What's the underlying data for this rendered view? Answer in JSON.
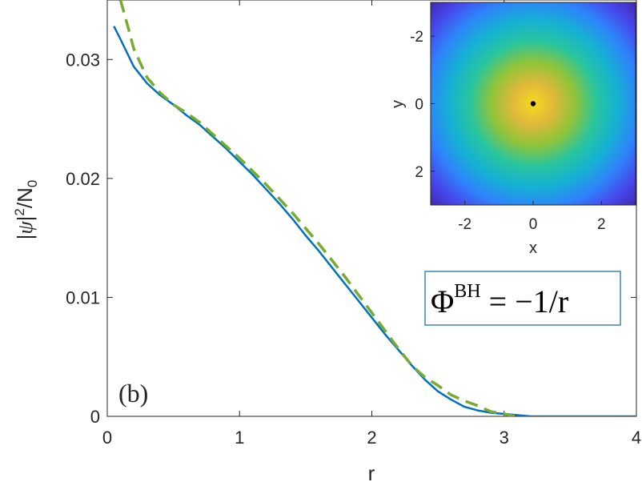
{
  "chart_data": [
    {
      "type": "line",
      "panel_label": "(b)",
      "xlabel": "r",
      "ylabel": "|ψ|²/N₀",
      "xlim": [
        0,
        4
      ],
      "ylim": [
        0,
        0.035
      ],
      "xticks": [
        "0",
        "1",
        "2",
        "3",
        "4"
      ],
      "yticks": [
        "0",
        "0.01",
        "0.02",
        "0.03"
      ],
      "xtick_values": [
        0,
        1,
        2,
        3,
        4
      ],
      "ytick_values": [
        0,
        0.01,
        0.02,
        0.03
      ],
      "annotation": {
        "prefix": "Φ",
        "superscript": "BH",
        "suffix": " = −1/r"
      },
      "series": [
        {
          "style": "solid",
          "color": "#0072BD",
          "x": [
            0.05,
            0.1,
            0.2,
            0.3,
            0.4,
            0.5,
            0.6,
            0.7,
            0.8,
            0.9,
            1.0,
            1.1,
            1.2,
            1.3,
            1.4,
            1.5,
            1.6,
            1.7,
            1.8,
            1.9,
            2.0,
            2.1,
            2.2,
            2.3,
            2.4,
            2.5,
            2.6,
            2.7,
            2.8,
            2.9,
            3.0,
            3.1,
            3.2,
            3.3,
            3.4,
            3.5,
            3.6,
            3.7,
            3.8,
            3.9,
            4.0
          ],
          "y": [
            0.0328,
            0.0317,
            0.0294,
            0.028,
            0.027,
            0.0262,
            0.0253,
            0.0245,
            0.0235,
            0.0225,
            0.0214,
            0.0203,
            0.0191,
            0.0179,
            0.0166,
            0.0152,
            0.0139,
            0.0125,
            0.0111,
            0.0097,
            0.0083,
            0.0069,
            0.0056,
            0.0043,
            0.0031,
            0.0021,
            0.0014,
            0.0008,
            0.0005,
            0.0003,
            0.0002,
            0.0001,
            0.0,
            0.0,
            0.0,
            0.0,
            0.0,
            0.0,
            0.0,
            0.0,
            0.0
          ]
        },
        {
          "style": "dashed",
          "color": "#77AC30",
          "x": [
            0.1,
            0.15,
            0.2,
            0.3,
            0.4,
            0.5,
            0.6,
            0.7,
            0.8,
            0.9,
            1.0,
            1.1,
            1.2,
            1.3,
            1.4,
            1.5,
            1.6,
            1.7,
            1.8,
            1.9,
            2.0,
            2.1,
            2.2,
            2.3,
            2.4,
            2.5,
            2.6,
            2.7,
            2.8,
            2.9,
            3.0,
            3.08
          ],
          "y": [
            0.035,
            0.033,
            0.0309,
            0.0285,
            0.0272,
            0.0262,
            0.0255,
            0.0247,
            0.0237,
            0.0227,
            0.0217,
            0.0206,
            0.0195,
            0.0183,
            0.0171,
            0.0158,
            0.0145,
            0.0131,
            0.0117,
            0.0102,
            0.0087,
            0.0072,
            0.0057,
            0.0043,
            0.0033,
            0.0026,
            0.0018,
            0.0013,
            0.0009,
            0.0004,
            0.0002,
            0.0
          ]
        }
      ]
    },
    {
      "type": "heatmap",
      "xlabel": "x",
      "ylabel": "y",
      "xlim": [
        -3,
        3
      ],
      "ylim": [
        -3,
        3
      ],
      "y_direction": "reversed",
      "xticks": [
        "-2",
        "0",
        "2"
      ],
      "yticks": [
        "-2",
        "0",
        "2"
      ],
      "xtick_values": [
        -2,
        0,
        2
      ],
      "ytick_values": [
        -2,
        0,
        2
      ],
      "profile": "radially symmetric density, maximum at origin",
      "colormap": [
        "#3e26a8",
        "#4745ea",
        "#2e84fa",
        "#15b1d3",
        "#29c59d",
        "#8fc43a",
        "#e0b83a",
        "#f4dc1d"
      ],
      "center_marker_color": "#000000"
    }
  ]
}
